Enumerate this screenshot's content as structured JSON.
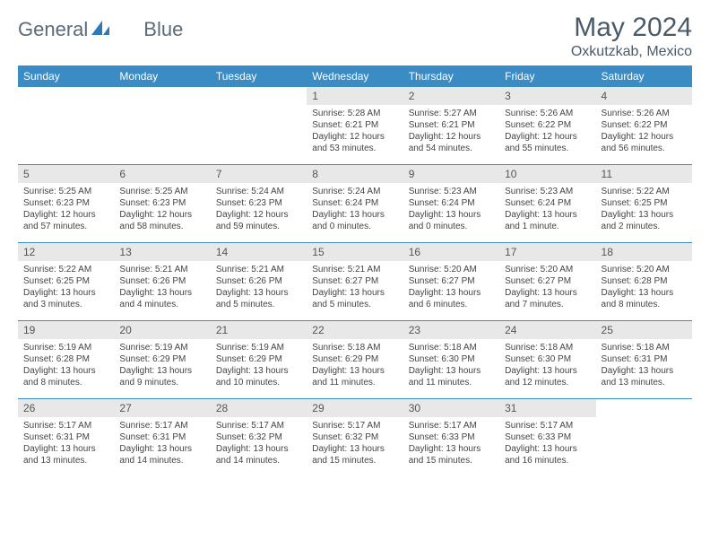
{
  "brand": {
    "text1": "General",
    "text2": "Blue"
  },
  "title": "May 2024",
  "location": "Oxkutzkab, Mexico",
  "weekdays": [
    "Sunday",
    "Monday",
    "Tuesday",
    "Wednesday",
    "Thursday",
    "Friday",
    "Saturday"
  ],
  "colors": {
    "header_bg": "#3b8bc4",
    "header_text": "#ffffff",
    "daynum_bg": "#e8e8e8",
    "week_border": "#3b8bc4",
    "title_color": "#4a5a68",
    "logo_blue": "#2f79b5"
  },
  "weeks": [
    [
      {
        "day": "",
        "empty": true
      },
      {
        "day": "",
        "empty": true
      },
      {
        "day": "",
        "empty": true
      },
      {
        "day": "1",
        "sunrise": "Sunrise: 5:28 AM",
        "sunset": "Sunset: 6:21 PM",
        "daylight1": "Daylight: 12 hours",
        "daylight2": "and 53 minutes."
      },
      {
        "day": "2",
        "sunrise": "Sunrise: 5:27 AM",
        "sunset": "Sunset: 6:21 PM",
        "daylight1": "Daylight: 12 hours",
        "daylight2": "and 54 minutes."
      },
      {
        "day": "3",
        "sunrise": "Sunrise: 5:26 AM",
        "sunset": "Sunset: 6:22 PM",
        "daylight1": "Daylight: 12 hours",
        "daylight2": "and 55 minutes."
      },
      {
        "day": "4",
        "sunrise": "Sunrise: 5:26 AM",
        "sunset": "Sunset: 6:22 PM",
        "daylight1": "Daylight: 12 hours",
        "daylight2": "and 56 minutes."
      }
    ],
    [
      {
        "day": "5",
        "sunrise": "Sunrise: 5:25 AM",
        "sunset": "Sunset: 6:23 PM",
        "daylight1": "Daylight: 12 hours",
        "daylight2": "and 57 minutes."
      },
      {
        "day": "6",
        "sunrise": "Sunrise: 5:25 AM",
        "sunset": "Sunset: 6:23 PM",
        "daylight1": "Daylight: 12 hours",
        "daylight2": "and 58 minutes."
      },
      {
        "day": "7",
        "sunrise": "Sunrise: 5:24 AM",
        "sunset": "Sunset: 6:23 PM",
        "daylight1": "Daylight: 12 hours",
        "daylight2": "and 59 minutes."
      },
      {
        "day": "8",
        "sunrise": "Sunrise: 5:24 AM",
        "sunset": "Sunset: 6:24 PM",
        "daylight1": "Daylight: 13 hours",
        "daylight2": "and 0 minutes."
      },
      {
        "day": "9",
        "sunrise": "Sunrise: 5:23 AM",
        "sunset": "Sunset: 6:24 PM",
        "daylight1": "Daylight: 13 hours",
        "daylight2": "and 0 minutes."
      },
      {
        "day": "10",
        "sunrise": "Sunrise: 5:23 AM",
        "sunset": "Sunset: 6:24 PM",
        "daylight1": "Daylight: 13 hours",
        "daylight2": "and 1 minute."
      },
      {
        "day": "11",
        "sunrise": "Sunrise: 5:22 AM",
        "sunset": "Sunset: 6:25 PM",
        "daylight1": "Daylight: 13 hours",
        "daylight2": "and 2 minutes."
      }
    ],
    [
      {
        "day": "12",
        "sunrise": "Sunrise: 5:22 AM",
        "sunset": "Sunset: 6:25 PM",
        "daylight1": "Daylight: 13 hours",
        "daylight2": "and 3 minutes."
      },
      {
        "day": "13",
        "sunrise": "Sunrise: 5:21 AM",
        "sunset": "Sunset: 6:26 PM",
        "daylight1": "Daylight: 13 hours",
        "daylight2": "and 4 minutes."
      },
      {
        "day": "14",
        "sunrise": "Sunrise: 5:21 AM",
        "sunset": "Sunset: 6:26 PM",
        "daylight1": "Daylight: 13 hours",
        "daylight2": "and 5 minutes."
      },
      {
        "day": "15",
        "sunrise": "Sunrise: 5:21 AM",
        "sunset": "Sunset: 6:27 PM",
        "daylight1": "Daylight: 13 hours",
        "daylight2": "and 5 minutes."
      },
      {
        "day": "16",
        "sunrise": "Sunrise: 5:20 AM",
        "sunset": "Sunset: 6:27 PM",
        "daylight1": "Daylight: 13 hours",
        "daylight2": "and 6 minutes."
      },
      {
        "day": "17",
        "sunrise": "Sunrise: 5:20 AM",
        "sunset": "Sunset: 6:27 PM",
        "daylight1": "Daylight: 13 hours",
        "daylight2": "and 7 minutes."
      },
      {
        "day": "18",
        "sunrise": "Sunrise: 5:20 AM",
        "sunset": "Sunset: 6:28 PM",
        "daylight1": "Daylight: 13 hours",
        "daylight2": "and 8 minutes."
      }
    ],
    [
      {
        "day": "19",
        "sunrise": "Sunrise: 5:19 AM",
        "sunset": "Sunset: 6:28 PM",
        "daylight1": "Daylight: 13 hours",
        "daylight2": "and 8 minutes."
      },
      {
        "day": "20",
        "sunrise": "Sunrise: 5:19 AM",
        "sunset": "Sunset: 6:29 PM",
        "daylight1": "Daylight: 13 hours",
        "daylight2": "and 9 minutes."
      },
      {
        "day": "21",
        "sunrise": "Sunrise: 5:19 AM",
        "sunset": "Sunset: 6:29 PM",
        "daylight1": "Daylight: 13 hours",
        "daylight2": "and 10 minutes."
      },
      {
        "day": "22",
        "sunrise": "Sunrise: 5:18 AM",
        "sunset": "Sunset: 6:29 PM",
        "daylight1": "Daylight: 13 hours",
        "daylight2": "and 11 minutes."
      },
      {
        "day": "23",
        "sunrise": "Sunrise: 5:18 AM",
        "sunset": "Sunset: 6:30 PM",
        "daylight1": "Daylight: 13 hours",
        "daylight2": "and 11 minutes."
      },
      {
        "day": "24",
        "sunrise": "Sunrise: 5:18 AM",
        "sunset": "Sunset: 6:30 PM",
        "daylight1": "Daylight: 13 hours",
        "daylight2": "and 12 minutes."
      },
      {
        "day": "25",
        "sunrise": "Sunrise: 5:18 AM",
        "sunset": "Sunset: 6:31 PM",
        "daylight1": "Daylight: 13 hours",
        "daylight2": "and 13 minutes."
      }
    ],
    [
      {
        "day": "26",
        "sunrise": "Sunrise: 5:17 AM",
        "sunset": "Sunset: 6:31 PM",
        "daylight1": "Daylight: 13 hours",
        "daylight2": "and 13 minutes."
      },
      {
        "day": "27",
        "sunrise": "Sunrise: 5:17 AM",
        "sunset": "Sunset: 6:31 PM",
        "daylight1": "Daylight: 13 hours",
        "daylight2": "and 14 minutes."
      },
      {
        "day": "28",
        "sunrise": "Sunrise: 5:17 AM",
        "sunset": "Sunset: 6:32 PM",
        "daylight1": "Daylight: 13 hours",
        "daylight2": "and 14 minutes."
      },
      {
        "day": "29",
        "sunrise": "Sunrise: 5:17 AM",
        "sunset": "Sunset: 6:32 PM",
        "daylight1": "Daylight: 13 hours",
        "daylight2": "and 15 minutes."
      },
      {
        "day": "30",
        "sunrise": "Sunrise: 5:17 AM",
        "sunset": "Sunset: 6:33 PM",
        "daylight1": "Daylight: 13 hours",
        "daylight2": "and 15 minutes."
      },
      {
        "day": "31",
        "sunrise": "Sunrise: 5:17 AM",
        "sunset": "Sunset: 6:33 PM",
        "daylight1": "Daylight: 13 hours",
        "daylight2": "and 16 minutes."
      },
      {
        "day": "",
        "empty": true
      }
    ]
  ]
}
